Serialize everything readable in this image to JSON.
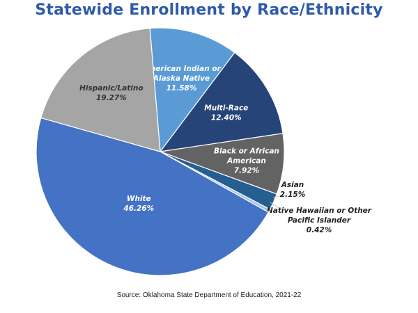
{
  "chart_data": {
    "type": "pie",
    "title": "Statewide Enrollment by Race/Ethnicity",
    "source": "Source: Oklahoma State Department of Education, 2021-22",
    "unit": "%",
    "slices": [
      {
        "label": [
          "American Indian or",
          "Alaska Native"
        ],
        "value": 11.58,
        "value_text": "11.58%",
        "color": "#5b9bd5",
        "text_color": "#ffffff"
      },
      {
        "label": [
          "Multi-Race"
        ],
        "value": 12.4,
        "value_text": "12.40%",
        "color": "#264478",
        "text_color": "#ffffff"
      },
      {
        "label": [
          "Black or African",
          "American"
        ],
        "value": 7.92,
        "value_text": "7.92%",
        "color": "#636363",
        "text_color": "#ffffff"
      },
      {
        "label": [
          "Asian"
        ],
        "value": 2.15,
        "value_text": "2.15%",
        "color": "#255e91",
        "text_color": "#222222",
        "outside": true
      },
      {
        "label": [
          "Native Hawaiian or Other",
          "Pacific Islander"
        ],
        "value": 0.42,
        "value_text": "0.42%",
        "color": "#9dc3e6",
        "text_color": "#222222",
        "outside": true
      },
      {
        "label": [
          "White"
        ],
        "value": 46.26,
        "value_text": "46.26%",
        "color": "#4472c4",
        "text_color": "#ffffff"
      },
      {
        "label": [
          "Hispanic/Latino"
        ],
        "value": 19.27,
        "value_text": "19.27%",
        "color": "#a5a5a5",
        "text_color": "#333333"
      }
    ]
  }
}
